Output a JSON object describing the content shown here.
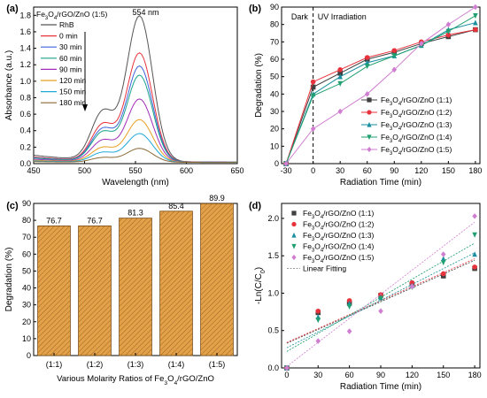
{
  "chart_data": [
    {
      "panel_label": "(a)",
      "type": "line",
      "title_label": "Fe3O4/rGO/ZnO (1:5)",
      "annotation": "554 nm",
      "xlabel": "Wavelength (nm)",
      "ylabel": "Absorbance (a.u.)",
      "xlim": [
        450,
        650
      ],
      "ylim": [
        0,
        1.9
      ],
      "xticks": [
        "450",
        "500",
        "550",
        "600",
        "650"
      ],
      "yticks": [
        "0.0",
        "0.2",
        "0.4",
        "0.6",
        "0.8",
        "1.0",
        "1.2",
        "1.4",
        "1.6",
        "1.8"
      ],
      "series": [
        {
          "name": "RhB",
          "color": "#555555",
          "peak": 1.78
        },
        {
          "name": "0 min",
          "color": "#e8323c",
          "peak": 1.33
        },
        {
          "name": "30 min",
          "color": "#3f63d8",
          "peak": 1.17
        },
        {
          "name": "60 min",
          "color": "#1aa38a",
          "peak": 1.06
        },
        {
          "name": "90 min",
          "color": "#a02eb8",
          "peak": 0.77
        },
        {
          "name": "120 min",
          "color": "#e8a020",
          "peak": 0.52
        },
        {
          "name": "150 min",
          "color": "#1fa8d8",
          "peak": 0.35
        },
        {
          "name": "180 min",
          "color": "#8a6a38",
          "peak": 0.17
        }
      ]
    },
    {
      "panel_label": "(b)",
      "type": "line",
      "region_labels": [
        "Dark",
        "UV Irradiation"
      ],
      "xlabel": "Radiation Time (min)",
      "ylabel": "Degradation (%)",
      "xlim": [
        -35,
        185
      ],
      "ylim": [
        0,
        90
      ],
      "x": [
        -30,
        0,
        30,
        60,
        90,
        120,
        150,
        180
      ],
      "xticks": [
        "-30",
        "0",
        "30",
        "60",
        "90",
        "120",
        "150",
        "180"
      ],
      "yticks": [
        "0",
        "10",
        "20",
        "30",
        "40",
        "50",
        "60",
        "70",
        "80",
        "90"
      ],
      "series": [
        {
          "name": "Fe3O4/rGO/ZnO (1:1)",
          "color": "#404040",
          "marker": "square",
          "values": [
            0,
            44,
            52,
            60,
            64,
            69,
            73,
            77
          ]
        },
        {
          "name": "Fe3O4/rGO/ZnO (1:2)",
          "color": "#e8323c",
          "marker": "circle",
          "values": [
            0,
            47,
            54,
            61,
            65,
            70,
            74,
            77
          ]
        },
        {
          "name": "Fe3O4/rGO/ZnO (1:3)",
          "color": "#1a8fa0",
          "marker": "triangle-up",
          "values": [
            0,
            40,
            50,
            58,
            62,
            68,
            77,
            81
          ]
        },
        {
          "name": "Fe3O4/rGO/ZnO (1:4)",
          "color": "#20a070",
          "marker": "triangle-down",
          "values": [
            0,
            39,
            46,
            56,
            62,
            68,
            76,
            85
          ]
        },
        {
          "name": "Fe3O4/rGO/ZnO (1:5)",
          "color": "#d07ed0",
          "marker": "diamond",
          "values": [
            0,
            20,
            30,
            40,
            54,
            69,
            80,
            90
          ]
        }
      ]
    },
    {
      "panel_label": "(c)",
      "type": "bar",
      "xlabel": "Various Molarity Ratios of Fe3O4/rGO/ZnO",
      "ylabel": "Degradation (%)",
      "ylim": [
        0,
        90
      ],
      "yticks": [
        "0",
        "10",
        "20",
        "30",
        "40",
        "50",
        "60",
        "70",
        "80",
        "90"
      ],
      "categories": [
        "(1:1)",
        "(1:2)",
        "(1:3)",
        "(1:4)",
        "(1:5)"
      ],
      "values": [
        76.7,
        76.7,
        81.3,
        85.4,
        89.9
      ],
      "data_labels": [
        "76.7",
        "76.7",
        "81.3",
        "85.4",
        "89.9"
      ],
      "bar_color": "#e3a14a"
    },
    {
      "panel_label": "(d)",
      "type": "scatter",
      "xlabel": "Radiation Time (min)",
      "ylabel": "-Ln(C/C0)",
      "xlim": [
        -5,
        185
      ],
      "ylim": [
        0,
        2.2
      ],
      "xticks": [
        "0",
        "30",
        "60",
        "90",
        "120",
        "150",
        "180"
      ],
      "yticks": [
        "0.0",
        "0.5",
        "1.0",
        "1.5",
        "2.0"
      ],
      "x": [
        0,
        30,
        60,
        90,
        120,
        150,
        180
      ],
      "fit_label": "Linear Fitting",
      "series": [
        {
          "name": "Fe3O4/rGO/ZnO (1:1)",
          "color": "#404040",
          "marker": "square",
          "values": [
            0,
            0.74,
            0.87,
            0.97,
            1.12,
            1.23,
            1.33
          ],
          "fit": [
            0.33,
            1.44
          ]
        },
        {
          "name": "Fe3O4/rGO/ZnO (1:2)",
          "color": "#e8323c",
          "marker": "circle",
          "values": [
            0,
            0.76,
            0.9,
            0.98,
            1.14,
            1.26,
            1.35
          ],
          "fit": [
            0.34,
            1.46
          ]
        },
        {
          "name": "Fe3O4/rGO/ZnO (1:3)",
          "color": "#1a8fa0",
          "marker": "triangle-up",
          "values": [
            0,
            0.68,
            0.86,
            0.94,
            1.1,
            1.46,
            1.52
          ],
          "fit": [
            0.27,
            1.54
          ]
        },
        {
          "name": "Fe3O4/rGO/ZnO (1:4)",
          "color": "#20a070",
          "marker": "triangle-down",
          "values": [
            0,
            0.64,
            0.82,
            0.93,
            1.08,
            1.41,
            1.78
          ],
          "fit": [
            0.22,
            1.67
          ]
        },
        {
          "name": "Fe3O4/rGO/ZnO (1:5)",
          "color": "#d07ed0",
          "marker": "diamond",
          "values": [
            0,
            0.36,
            0.49,
            0.76,
            1.09,
            1.52,
            2.03
          ],
          "fit": [
            0.02,
            1.95
          ]
        }
      ]
    }
  ]
}
